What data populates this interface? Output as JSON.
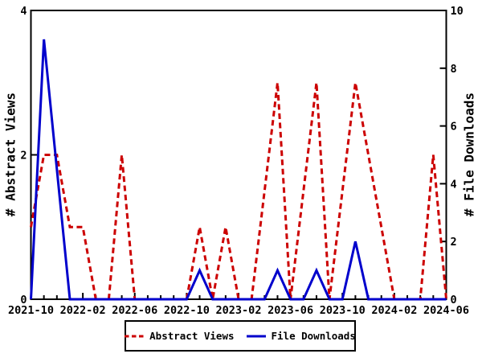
{
  "chart_data": {
    "type": "line",
    "title": "",
    "x": [
      "2021-10",
      "2021-11",
      "2021-12",
      "2022-01",
      "2022-02",
      "2022-03",
      "2022-04",
      "2022-05",
      "2022-06",
      "2022-07",
      "2022-08",
      "2022-09",
      "2022-10",
      "2022-11",
      "2022-12",
      "2023-01",
      "2023-02",
      "2023-03",
      "2023-04",
      "2023-05",
      "2023-06",
      "2023-07",
      "2023-08",
      "2023-09",
      "2023-10",
      "2023-11",
      "2023-12",
      "2024-01",
      "2024-02",
      "2024-03",
      "2024-04",
      "2024-05",
      "2024-06"
    ],
    "x_tick_labels": [
      "2021-10",
      "2022-02",
      "2022-06",
      "2022-10",
      "2023-02",
      "2023-06",
      "2023-10",
      "2024-02",
      "2024-06"
    ],
    "x_label_every": 4,
    "series": [
      {
        "name": "Abstract Views",
        "axis": "left",
        "color": "#cc0000",
        "dash": true,
        "values": [
          1,
          2,
          2,
          1,
          1,
          0,
          0,
          2,
          0,
          0,
          0,
          0,
          0,
          1,
          0,
          1,
          0,
          0,
          1.5,
          3,
          0,
          1.5,
          3,
          0,
          1.5,
          3,
          2,
          1,
          0,
          0,
          0,
          2,
          0
        ]
      },
      {
        "name": "File Downloads",
        "axis": "right",
        "color": "#0000cc",
        "dash": false,
        "values": [
          0,
          9,
          4.5,
          0,
          0,
          0,
          0,
          0,
          0,
          0,
          0,
          0,
          0,
          1,
          0,
          0,
          0,
          0,
          0,
          1,
          0,
          0,
          1,
          0,
          0,
          2,
          0,
          0,
          0,
          0,
          0,
          0,
          0
        ]
      }
    ],
    "y_left": {
      "label": "# Abstract Views",
      "min": 0,
      "max": 4,
      "ticks": [
        0,
        2,
        4
      ]
    },
    "y_right": {
      "label": "# File Downloads",
      "min": 0,
      "max": 10,
      "ticks": [
        0,
        2,
        4,
        6,
        8,
        10
      ]
    },
    "grid": false,
    "legend_position": "bottom-center",
    "axis_color": "#000000",
    "background": "#ffffff"
  }
}
